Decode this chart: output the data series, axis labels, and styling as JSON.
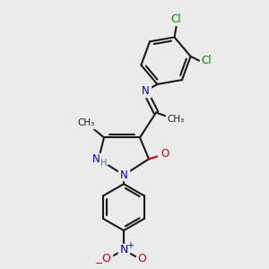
{
  "bg_color": "#ebebeb",
  "bond_color": "#1a1a1a",
  "N_color": "#0000cc",
  "O_color": "#cc0000",
  "Cl_color": "#008800",
  "H_color": "#408080",
  "figsize": [
    3.0,
    3.0
  ],
  "dpi": 100,
  "xlim": [
    0,
    300
  ],
  "ylim": [
    0,
    300
  ]
}
